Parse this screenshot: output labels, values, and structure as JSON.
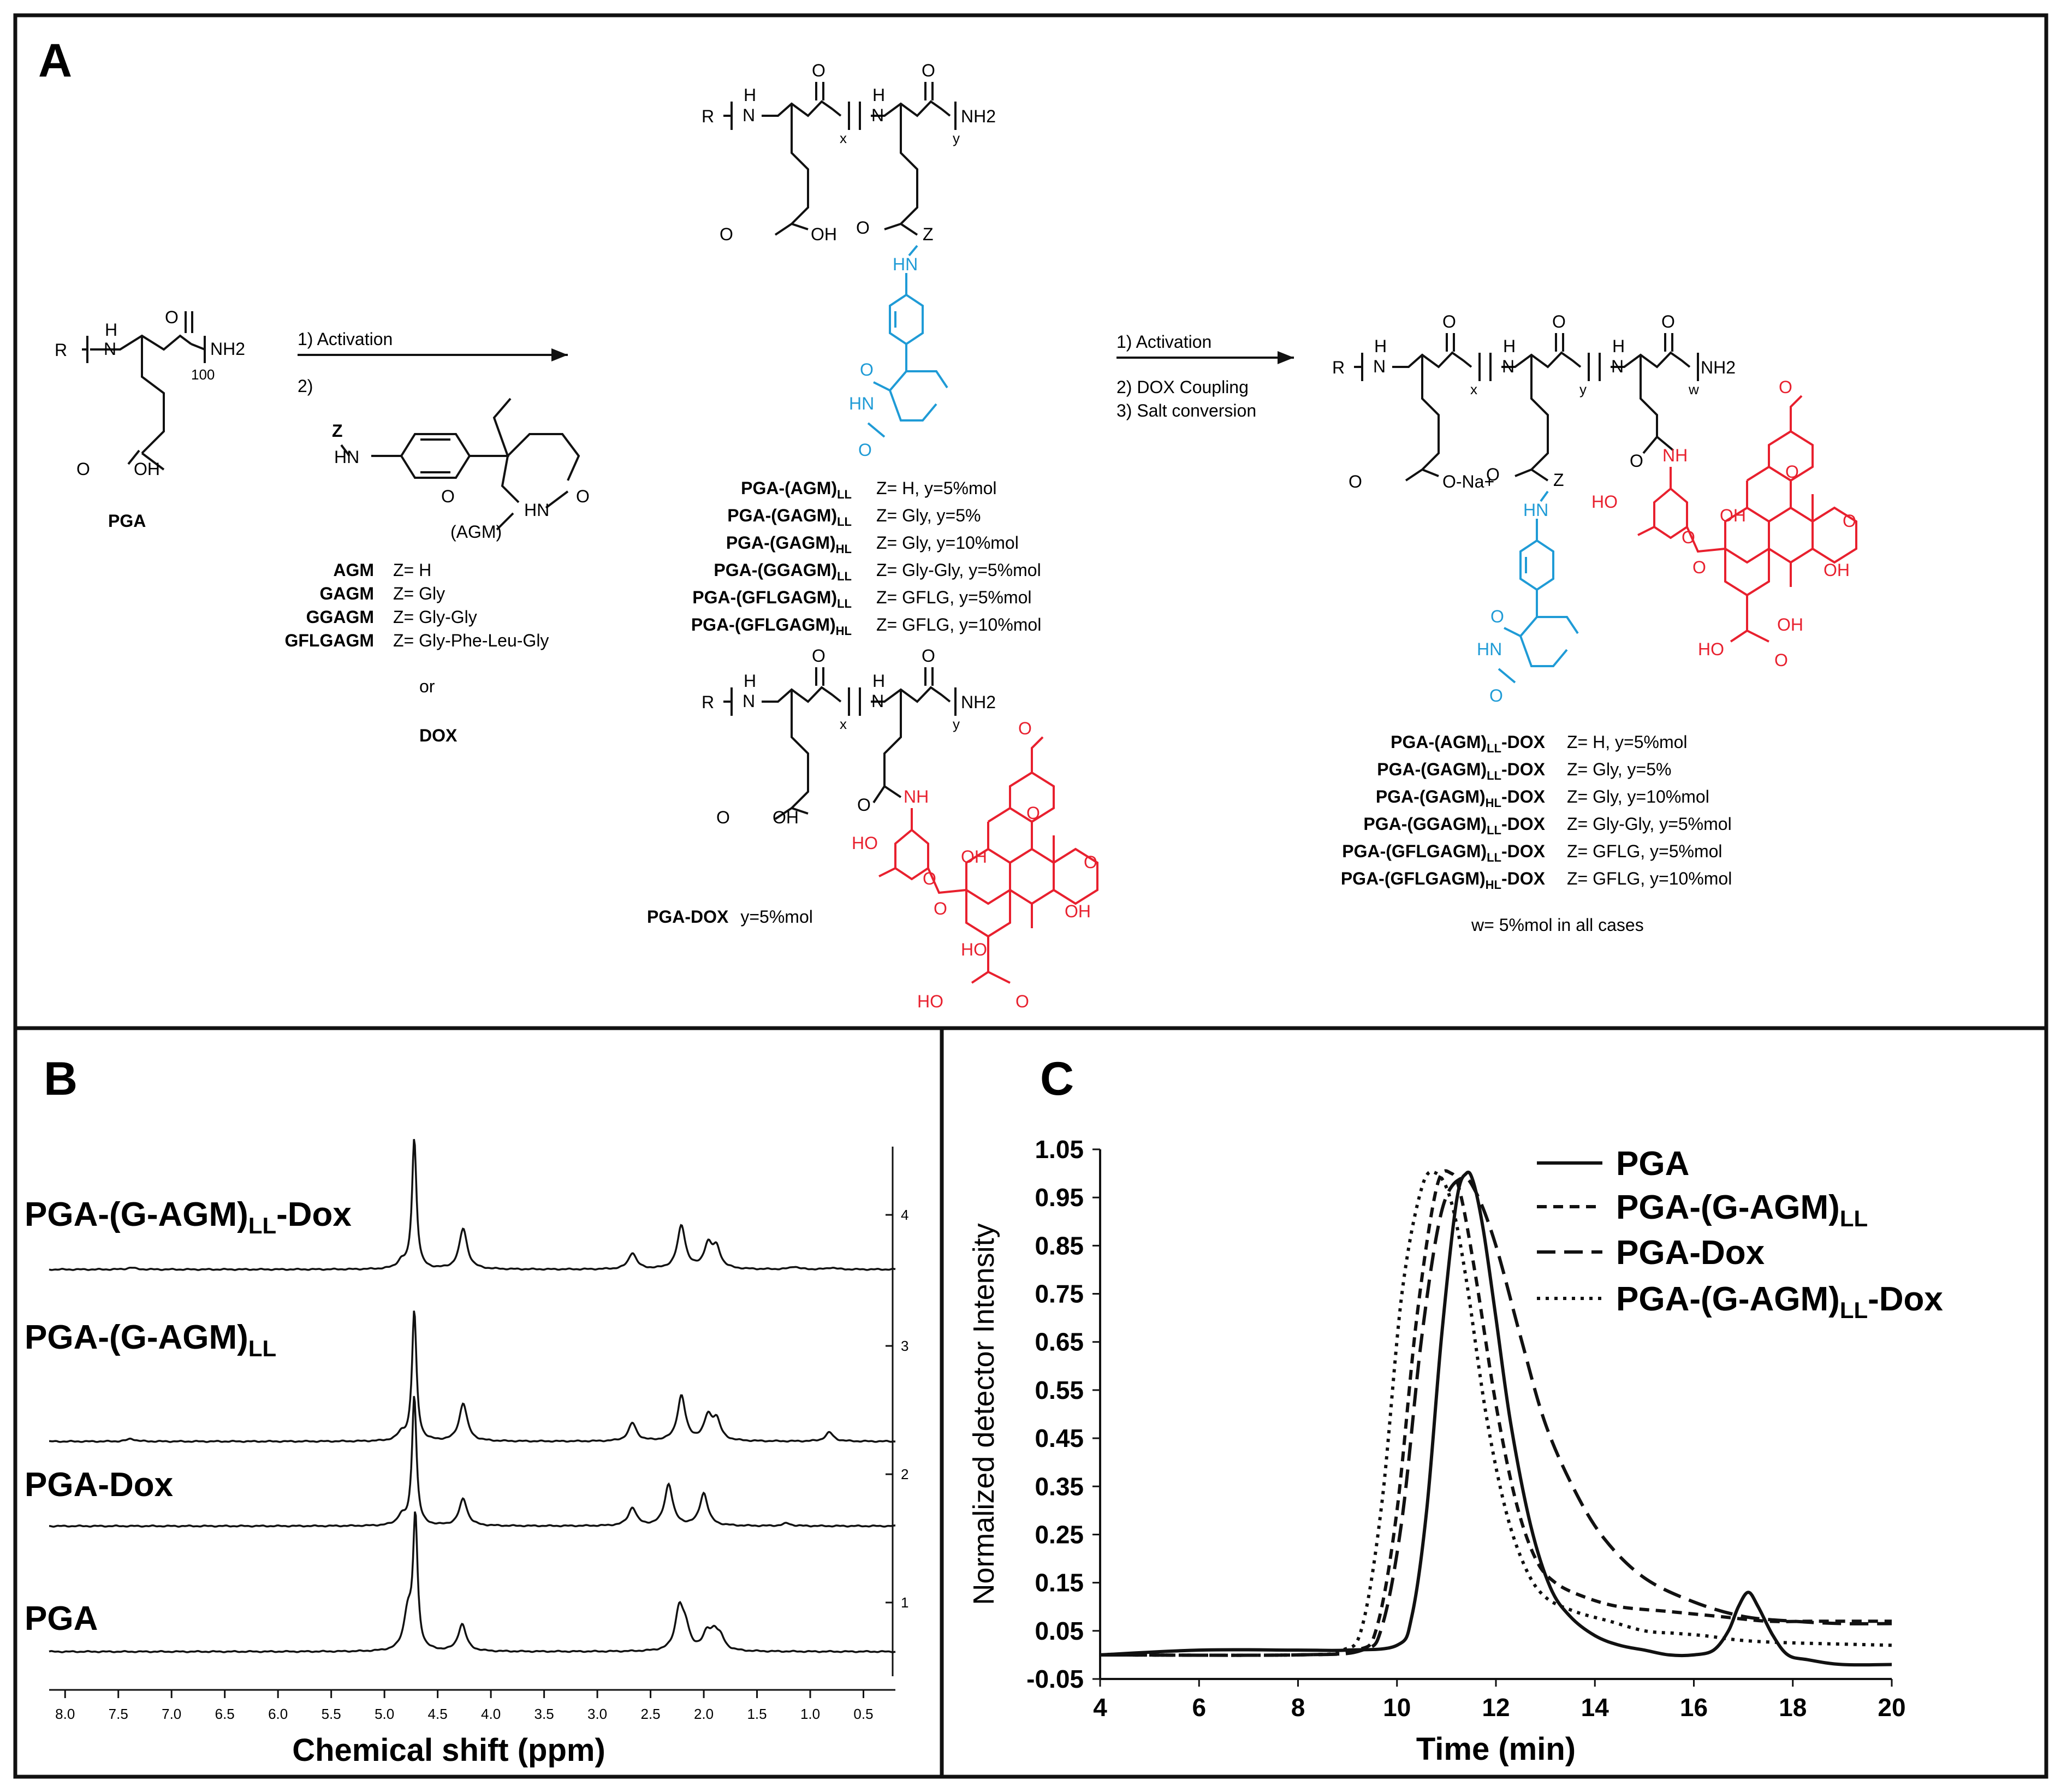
{
  "panel_labels": {
    "a": "A",
    "b": "B",
    "c": "C"
  },
  "colors": {
    "agm": "#1f9bd6",
    "dox": "#e8202e",
    "ink": "#111111",
    "frame": "#111111"
  },
  "scheme": {
    "pga": {
      "label": "PGA",
      "r": "R",
      "h": "H",
      "n": "N",
      "o": "O",
      "nh2": "NH2",
      "subscript": "100",
      "oh": "OH"
    },
    "step1": {
      "activation": "1) Activation",
      "two": "2)"
    },
    "agm_reagent": {
      "z": "Z",
      "hn": "HN",
      "hn2": "HN",
      "o1": "O",
      "o2": "O",
      "name": "(AGM)",
      "rows": [
        {
          "name": "AGM",
          "z": "Z= H"
        },
        {
          "name": "GAGM",
          "z": "Z= Gly"
        },
        {
          "name": "GGAGM",
          "z": "Z= Gly-Gly"
        },
        {
          "name": "GFLGAGM",
          "z": "Z= Gly-Phe-Leu-Gly"
        }
      ],
      "or": "or",
      "dox": "DOX"
    },
    "middle": {
      "r": "R",
      "h1": "H",
      "n1": "N",
      "o1": "O",
      "h2": "H",
      "n2": "N",
      "o2": "O",
      "x": "x",
      "y": "y",
      "nh2": "NH2",
      "o_acid": "O",
      "oh": "OH",
      "o_z": "O",
      "z": "Z",
      "hn": "HN",
      "hn_ring": "HN",
      "o_ring1": "O",
      "o_ring2": "O",
      "rows": [
        {
          "name": "PGA-(AGM)",
          "sub": "LL",
          "desc": "Z= H, y=5%mol"
        },
        {
          "name": "PGA-(GAGM)",
          "sub": "LL",
          "desc": "Z= Gly, y=5%"
        },
        {
          "name": "PGA-(GAGM)",
          "sub": "HL",
          "desc": "Z= Gly, y=10%mol"
        },
        {
          "name": "PGA-(GGAGM)",
          "sub": "LL",
          "desc": "Z= Gly-Gly, y=5%mol"
        },
        {
          "name": "PGA-(GFLGAGM)",
          "sub": "LL",
          "desc": "Z= GFLG, y=5%mol"
        },
        {
          "name": "PGA-(GFLGAGM)",
          "sub": "HL",
          "desc": "Z= GFLG, y=10%mol"
        }
      ]
    },
    "pga_dox": {
      "r": "R",
      "h1": "H",
      "n1": "N",
      "o1": "O",
      "h2": "H",
      "n2": "N",
      "o2": "O",
      "x": "x",
      "y": "y",
      "nh2": "NH2",
      "o_acid": "O",
      "oh": "OH",
      "o_amide": "O",
      "nh": "NH",
      "ho_sugar": "HO",
      "o_sugar": "O",
      "o_link": "O",
      "o_q1": "O",
      "o_q2": "O",
      "oh_a": "OH",
      "oh_b": "OH",
      "ho_ring": "HO",
      "ho_tail": "HO",
      "o_tail": "O",
      "o_methoxy": "O",
      "label": "PGA-DOX",
      "desc": "y=5%mol"
    },
    "step2": {
      "activation": "1) Activation",
      "coupling": "2) DOX Coupling",
      "salt": "3) Salt conversion"
    },
    "final": {
      "r": "R",
      "h1": "H",
      "n1": "N",
      "o1": "O",
      "h2": "H",
      "n2": "N",
      "o2": "O",
      "h3": "H",
      "n3": "N",
      "o3": "O",
      "x": "x",
      "y": "y",
      "w": "w",
      "nh2": "NH2",
      "o_salt": "O",
      "o_na": "O-Na+",
      "o_z": "O",
      "z": "Z",
      "hn": "HN",
      "hn_ring": "HN",
      "o_ring1": "O",
      "o_ring2": "O",
      "o_amide": "O",
      "nh": "NH",
      "ho_sugar": "HO",
      "o_sugar": "O",
      "o_link": "O",
      "o_q1": "O",
      "o_q2": "O",
      "oh_a": "OH",
      "oh_b": "OH",
      "oh_ring": "OH",
      "ho_tail": "HO",
      "o_tail": "O",
      "o_methoxy": "O",
      "rows": [
        {
          "name": "PGA-(AGM)",
          "sub": "LL",
          "suffix": "-DOX",
          "desc": "Z= H, y=5%mol"
        },
        {
          "name": "PGA-(GAGM)",
          "sub": "LL",
          "suffix": "-DOX",
          "desc": "Z= Gly, y=5%"
        },
        {
          "name": "PGA-(GAGM)",
          "sub": "HL",
          "suffix": "-DOX",
          "desc": "Z= Gly, y=10%mol"
        },
        {
          "name": "PGA-(GGAGM)",
          "sub": "LL",
          "suffix": "-DOX",
          "desc": "Z= Gly-Gly, y=5%mol"
        },
        {
          "name": "PGA-(GFLGAGM)",
          "sub": "LL",
          "suffix": "-DOX",
          "desc": "Z= GFLG, y=5%mol"
        },
        {
          "name": "PGA-(GFLGAGM)",
          "sub": "HL",
          "suffix": "-DOX",
          "desc": "Z= GFLG, y=10%mol"
        }
      ],
      "note": "w= 5%mol in all cases"
    }
  },
  "chart_data": [
    {
      "type": "line",
      "panel": "B",
      "title": "",
      "xlabel": "Chemical shift (ppm)",
      "ylabel": "",
      "x_reversed": true,
      "xlim": [
        8.15,
        0.2
      ],
      "xticks": [
        "8.0",
        "7.5",
        "7.0",
        "6.5",
        "6.0",
        "5.5",
        "5.0",
        "4.5",
        "4.0",
        "3.5",
        "3.0",
        "2.5",
        "2.0",
        "1.5",
        "1.0",
        "0.5"
      ],
      "yticks_right": [
        "1",
        "2",
        "3",
        "4"
      ],
      "series": [
        {
          "name": "PGA-(G-AGM)",
          "sub": "LL",
          "suffix": "-Dox",
          "peaks": [
            [
              4.72,
              1.45
            ],
            [
              4.84,
              0.08
            ],
            [
              4.26,
              0.45
            ],
            [
              2.67,
              0.18
            ],
            [
              2.21,
              0.48
            ],
            [
              1.96,
              0.26
            ],
            [
              1.88,
              0.22
            ],
            [
              7.38,
              0.02
            ],
            [
              1.15,
              0.03
            ],
            [
              0.8,
              0.02
            ]
          ]
        },
        {
          "name": "PGA-(G-AGM)",
          "sub": "LL",
          "suffix": "",
          "peaks": [
            [
              4.72,
              1.45
            ],
            [
              4.84,
              0.08
            ],
            [
              4.26,
              0.42
            ],
            [
              2.67,
              0.2
            ],
            [
              2.21,
              0.5
            ],
            [
              1.96,
              0.26
            ],
            [
              1.88,
              0.22
            ],
            [
              7.38,
              0.03
            ],
            [
              0.82,
              0.1
            ]
          ]
        },
        {
          "name": "PGA-Dox",
          "sub": "",
          "suffix": "",
          "peaks": [
            [
              4.72,
              1.45
            ],
            [
              4.84,
              0.1
            ],
            [
              4.26,
              0.3
            ],
            [
              2.67,
              0.2
            ],
            [
              2.33,
              0.46
            ],
            [
              2.0,
              0.36
            ],
            [
              1.22,
              0.03
            ]
          ]
        },
        {
          "name": "PGA",
          "sub": "",
          "suffix": "",
          "peaks": [
            [
              4.71,
              1.45
            ],
            [
              4.78,
              0.42
            ],
            [
              4.27,
              0.3
            ],
            [
              2.23,
              0.46
            ],
            [
              2.17,
              0.22
            ],
            [
              1.97,
              0.18
            ],
            [
              1.9,
              0.18
            ],
            [
              1.84,
              0.12
            ]
          ]
        }
      ]
    },
    {
      "type": "line",
      "panel": "C",
      "title": "",
      "xlabel": "Time (min)",
      "ylabel": "Normalized detector Intensity",
      "xlim": [
        4,
        20
      ],
      "ylim": [
        -0.05,
        1.05
      ],
      "xticks": [
        4,
        6,
        8,
        10,
        12,
        14,
        16,
        18,
        20
      ],
      "yticks": [
        "1.05",
        "0.95",
        "0.85",
        "0.75",
        "0.65",
        "0.55",
        "0.45",
        "0.35",
        "0.25",
        "0.15",
        "0.05",
        "-0.05"
      ],
      "legend_position": "top-right",
      "series": [
        {
          "name": "PGA",
          "sub": "",
          "suffix": "",
          "style": "solid",
          "x": [
            4,
            6,
            8,
            9,
            10,
            10.3,
            10.6,
            10.9,
            11.2,
            11.4,
            11.55,
            11.75,
            12.0,
            12.3,
            12.7,
            13.1,
            13.5,
            14.0,
            14.5,
            15,
            15.5,
            16,
            16.4,
            16.7,
            16.9,
            17.1,
            17.3,
            17.6,
            17.9,
            18.3,
            19,
            20
          ],
          "y": [
            0.0,
            0.01,
            0.01,
            0.01,
            0.02,
            0.08,
            0.3,
            0.66,
            0.94,
            1.0,
            0.98,
            0.88,
            0.7,
            0.48,
            0.27,
            0.14,
            0.08,
            0.04,
            0.02,
            0.01,
            0.0,
            0.0,
            0.01,
            0.05,
            0.1,
            0.13,
            0.1,
            0.04,
            0.0,
            -0.01,
            -0.02,
            -0.02
          ]
        },
        {
          "name": "PGA-(G-AGM)",
          "sub": "LL",
          "suffix": "",
          "style": "dash",
          "x": [
            4,
            8,
            9.2,
            9.6,
            10.0,
            10.4,
            10.8,
            11.1,
            11.3,
            11.6,
            12.0,
            12.4,
            12.8,
            13.2,
            13.8,
            14.5,
            15.5,
            16.5,
            17.5,
            18.5,
            20
          ],
          "y": [
            0.0,
            0.0,
            0.01,
            0.06,
            0.3,
            0.7,
            0.97,
            1.0,
            0.95,
            0.78,
            0.52,
            0.32,
            0.2,
            0.15,
            0.12,
            0.1,
            0.09,
            0.08,
            0.07,
            0.07,
            0.07
          ]
        },
        {
          "name": "PGA-Dox",
          "sub": "",
          "suffix": "",
          "style": "longdash",
          "x": [
            4,
            8,
            9.3,
            9.7,
            10.1,
            10.5,
            10.9,
            11.3,
            11.6,
            12.0,
            12.5,
            13.0,
            13.6,
            14.2,
            15.0,
            16.0,
            17.0,
            18.0,
            19.0,
            20
          ],
          "y": [
            0.0,
            0.0,
            0.01,
            0.06,
            0.28,
            0.66,
            0.92,
            0.99,
            0.96,
            0.85,
            0.66,
            0.48,
            0.34,
            0.24,
            0.16,
            0.11,
            0.08,
            0.07,
            0.065,
            0.065
          ]
        },
        {
          "name": "PGA-(G-AGM)",
          "sub": "LL",
          "suffix": "-Dox",
          "style": "dot",
          "x": [
            4,
            8,
            8.9,
            9.3,
            9.7,
            10.1,
            10.5,
            10.8,
            11.1,
            11.4,
            11.8,
            12.2,
            12.6,
            13.0,
            13.6,
            14.3,
            15.0,
            15.6,
            16.2,
            17.0,
            18.0,
            20
          ],
          "y": [
            0.0,
            0.0,
            0.01,
            0.06,
            0.32,
            0.75,
            0.97,
            1.0,
            0.94,
            0.78,
            0.5,
            0.3,
            0.18,
            0.12,
            0.09,
            0.07,
            0.05,
            0.045,
            0.04,
            0.03,
            0.025,
            0.02
          ]
        }
      ]
    }
  ]
}
